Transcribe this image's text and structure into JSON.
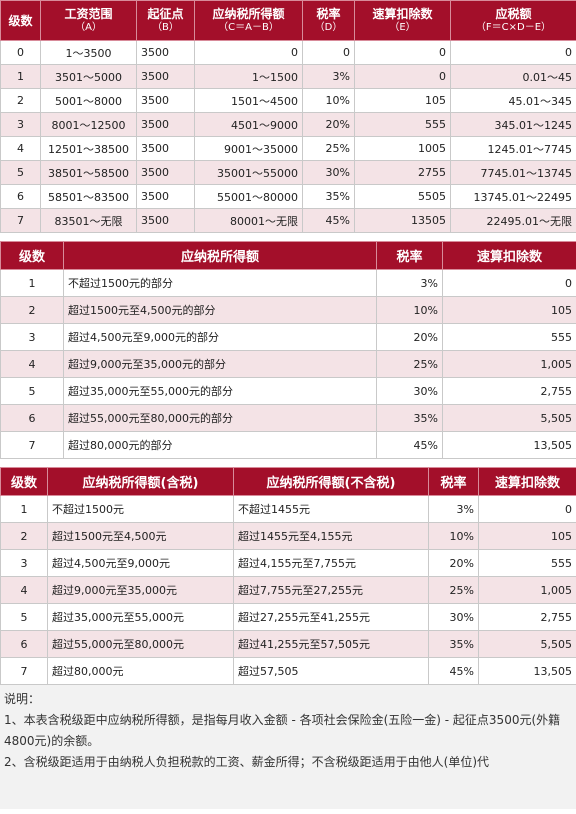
{
  "table1": {
    "headers": [
      {
        "title": "级数",
        "sub": ""
      },
      {
        "title": "工资范围",
        "sub": "（A）"
      },
      {
        "title": "起征点",
        "sub": "（B）"
      },
      {
        "title": "应纳税所得额",
        "sub": "（C＝A－B）"
      },
      {
        "title": "税率",
        "sub": "（D）"
      },
      {
        "title": "速算扣除数",
        "sub": "（E）"
      },
      {
        "title": "应税额",
        "sub": "（F＝C×D－E）"
      }
    ],
    "rows": [
      [
        "0",
        "1～3500",
        "3500",
        "0",
        "0",
        "0",
        "0"
      ],
      [
        "1",
        "3501～5000",
        "3500",
        "1～1500",
        "3%",
        "0",
        "0.01～45"
      ],
      [
        "2",
        "5001～8000",
        "3500",
        "1501～4500",
        "10%",
        "105",
        "45.01～345"
      ],
      [
        "3",
        "8001～12500",
        "3500",
        "4501～9000",
        "20%",
        "555",
        "345.01～1245"
      ],
      [
        "4",
        "12501～38500",
        "3500",
        "9001～35000",
        "25%",
        "1005",
        "1245.01～7745"
      ],
      [
        "5",
        "38501～58500",
        "3500",
        "35001～55000",
        "30%",
        "2755",
        "7745.01～13745"
      ],
      [
        "6",
        "58501～83500",
        "3500",
        "55001～80000",
        "35%",
        "5505",
        "13745.01～22495"
      ],
      [
        "7",
        "83501～无限",
        "3500",
        "80001～无限",
        "45%",
        "13505",
        "22495.01～无限"
      ]
    ]
  },
  "table2": {
    "headers": [
      "级数",
      "应纳税所得额",
      "税率",
      "速算扣除数"
    ],
    "rows": [
      [
        "1",
        "不超过1500元的部分",
        "3%",
        "0"
      ],
      [
        "2",
        "超过1500元至4,500元的部分",
        "10%",
        "105"
      ],
      [
        "3",
        "超过4,500元至9,000元的部分",
        "20%",
        "555"
      ],
      [
        "4",
        "超过9,000元至35,000元的部分",
        "25%",
        "1,005"
      ],
      [
        "5",
        "超过35,000元至55,000元的部分",
        "30%",
        "2,755"
      ],
      [
        "6",
        "超过55,000元至80,000元的部分",
        "35%",
        "5,505"
      ],
      [
        "7",
        "超过80,000元的部分",
        "45%",
        "13,505"
      ]
    ]
  },
  "table3": {
    "headers": [
      "级数",
      "应纳税所得额(含税)",
      "应纳税所得额(不含税)",
      "税率",
      "速算扣除数"
    ],
    "rows": [
      [
        "1",
        "不超过1500元",
        "不超过1455元",
        "3%",
        "0"
      ],
      [
        "2",
        "超过1500元至4,500元",
        "超过1455元至4,155元",
        "10%",
        "105"
      ],
      [
        "3",
        "超过4,500元至9,000元",
        "超过4,155元至7,755元",
        "20%",
        "555"
      ],
      [
        "4",
        "超过9,000元至35,000元",
        "超过7,755元至27,255元",
        "25%",
        "1,005"
      ],
      [
        "5",
        "超过35,000元至55,000元",
        "超过27,255元至41,255元",
        "30%",
        "2,755"
      ],
      [
        "6",
        "超过55,000元至80,000元",
        "超过41,255元至57,505元",
        "35%",
        "5,505"
      ],
      [
        "7",
        "超过80,000元",
        "超过57,505",
        "45%",
        "13,505"
      ]
    ]
  },
  "notes": {
    "title": "说明：",
    "items": [
      "1、本表含税级距中应纳税所得额，是指每月收入金额 - 各项社会保险金(五险一金) - 起征点3500元(外籍4800元)的余额。",
      "2、含税级距适用于由纳税人负担税款的工资、薪金所得；不含税级距适用于由他人(单位)代"
    ]
  }
}
